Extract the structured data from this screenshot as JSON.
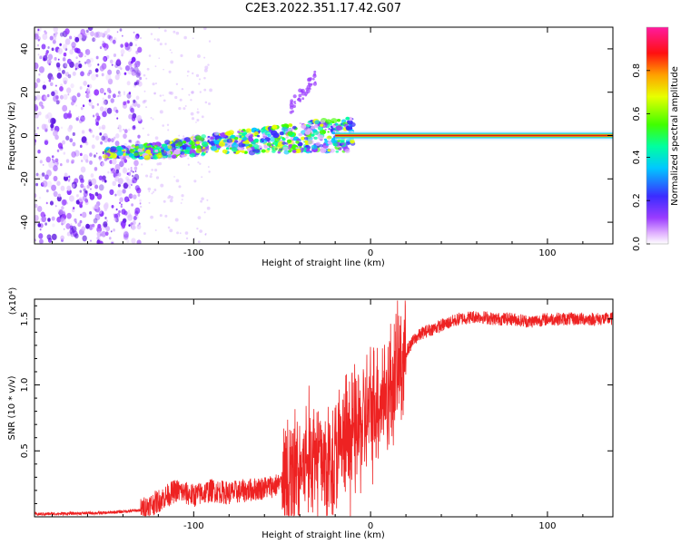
{
  "title": "C2E3.2022.351.17.42.G07",
  "colors": {
    "snr_line": "#ee2222",
    "frame": "#000000",
    "carrier": "#d81818"
  },
  "chart_data": [
    {
      "type": "heatmap",
      "name": "spectrogram",
      "xlabel": "Height of straight line (km)",
      "ylabel": "Frequency (Hz)",
      "xlim": [
        -190,
        137
      ],
      "ylim": [
        -50,
        50
      ],
      "x_ticks": [
        -100,
        0,
        100
      ],
      "y_ticks": [
        -40,
        -20,
        0,
        20,
        40
      ],
      "colorbar": {
        "label": "Normalized spectral amplitude",
        "range": [
          0,
          1
        ],
        "ticks": [
          "0.0",
          "0.2",
          "0.4",
          "0.6",
          "0.8"
        ],
        "tick_values": [
          0.0,
          0.2,
          0.4,
          0.6,
          0.8
        ],
        "colormap": "rainbow (white-violet-blue-cyan-green-yellow-red-magenta)"
      },
      "features": {
        "noise_region_x": [
          -190,
          -130
        ],
        "carrier_track": [
          [
            -150,
            -8
          ],
          [
            -120,
            -7
          ],
          [
            -100,
            -5
          ],
          [
            -80,
            -3
          ],
          [
            -60,
            -2
          ],
          [
            -40,
            -1
          ],
          [
            -20,
            0
          ],
          [
            0,
            0
          ],
          [
            137,
            0
          ]
        ]
      }
    },
    {
      "type": "line",
      "name": "snr",
      "xlabel": "Height of straight line (km)",
      "ylabel": "SNR (10 * v/v)",
      "y_multiplier": "(x10⁴)",
      "xlim": [
        -190,
        137
      ],
      "ylim": [
        0,
        1.65
      ],
      "x_ticks": [
        -100,
        0,
        100
      ],
      "y_ticks": [
        "0.5",
        "1.0",
        "1.5"
      ],
      "y_tick_values": [
        0.5,
        1.0,
        1.5
      ],
      "series": [
        {
          "name": "SNR",
          "points": [
            [
              -190,
              0.02
            ],
            [
              -150,
              0.03
            ],
            [
              -130,
              0.05
            ],
            [
              -120,
              0.12
            ],
            [
              -110,
              0.2
            ],
            [
              -100,
              0.16
            ],
            [
              -90,
              0.2
            ],
            [
              -80,
              0.18
            ],
            [
              -70,
              0.2
            ],
            [
              -60,
              0.22
            ],
            [
              -50,
              0.25
            ],
            [
              -40,
              0.35
            ],
            [
              -35,
              0.45
            ],
            [
              -30,
              0.5
            ],
            [
              -25,
              0.4
            ],
            [
              -20,
              0.45
            ],
            [
              -15,
              0.55
            ],
            [
              -10,
              0.6
            ],
            [
              -5,
              0.7
            ],
            [
              0,
              0.8
            ],
            [
              5,
              0.9
            ],
            [
              10,
              0.95
            ],
            [
              15,
              1.1
            ],
            [
              20,
              1.25
            ],
            [
              25,
              1.35
            ],
            [
              30,
              1.4
            ],
            [
              40,
              1.45
            ],
            [
              50,
              1.5
            ],
            [
              60,
              1.52
            ],
            [
              70,
              1.5
            ],
            [
              80,
              1.5
            ],
            [
              90,
              1.48
            ],
            [
              100,
              1.5
            ],
            [
              110,
              1.5
            ],
            [
              120,
              1.5
            ],
            [
              137,
              1.5
            ]
          ]
        }
      ]
    }
  ]
}
